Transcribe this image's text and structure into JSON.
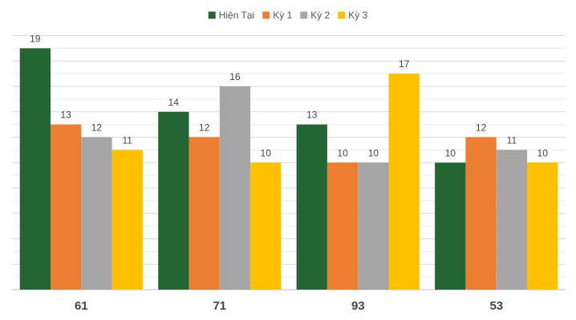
{
  "chart_data": {
    "type": "bar",
    "categories": [
      "61",
      "71",
      "93",
      "53"
    ],
    "series": [
      {
        "name": "Hiện Tại",
        "color": "#246534",
        "values": [
          19,
          14,
          13,
          10
        ]
      },
      {
        "name": "Kỳ 1",
        "color": "#ED7D31",
        "values": [
          13,
          12,
          10,
          12
        ]
      },
      {
        "name": "Kỳ 2",
        "color": "#A5A5A5",
        "values": [
          12,
          16,
          10,
          11
        ]
      },
      {
        "name": "Kỳ 3",
        "color": "#FFC000",
        "values": [
          11,
          10,
          17,
          10
        ]
      }
    ],
    "ylim": [
      0,
      20
    ],
    "grid": true,
    "legend_position": "top-center",
    "data_labels": true
  }
}
